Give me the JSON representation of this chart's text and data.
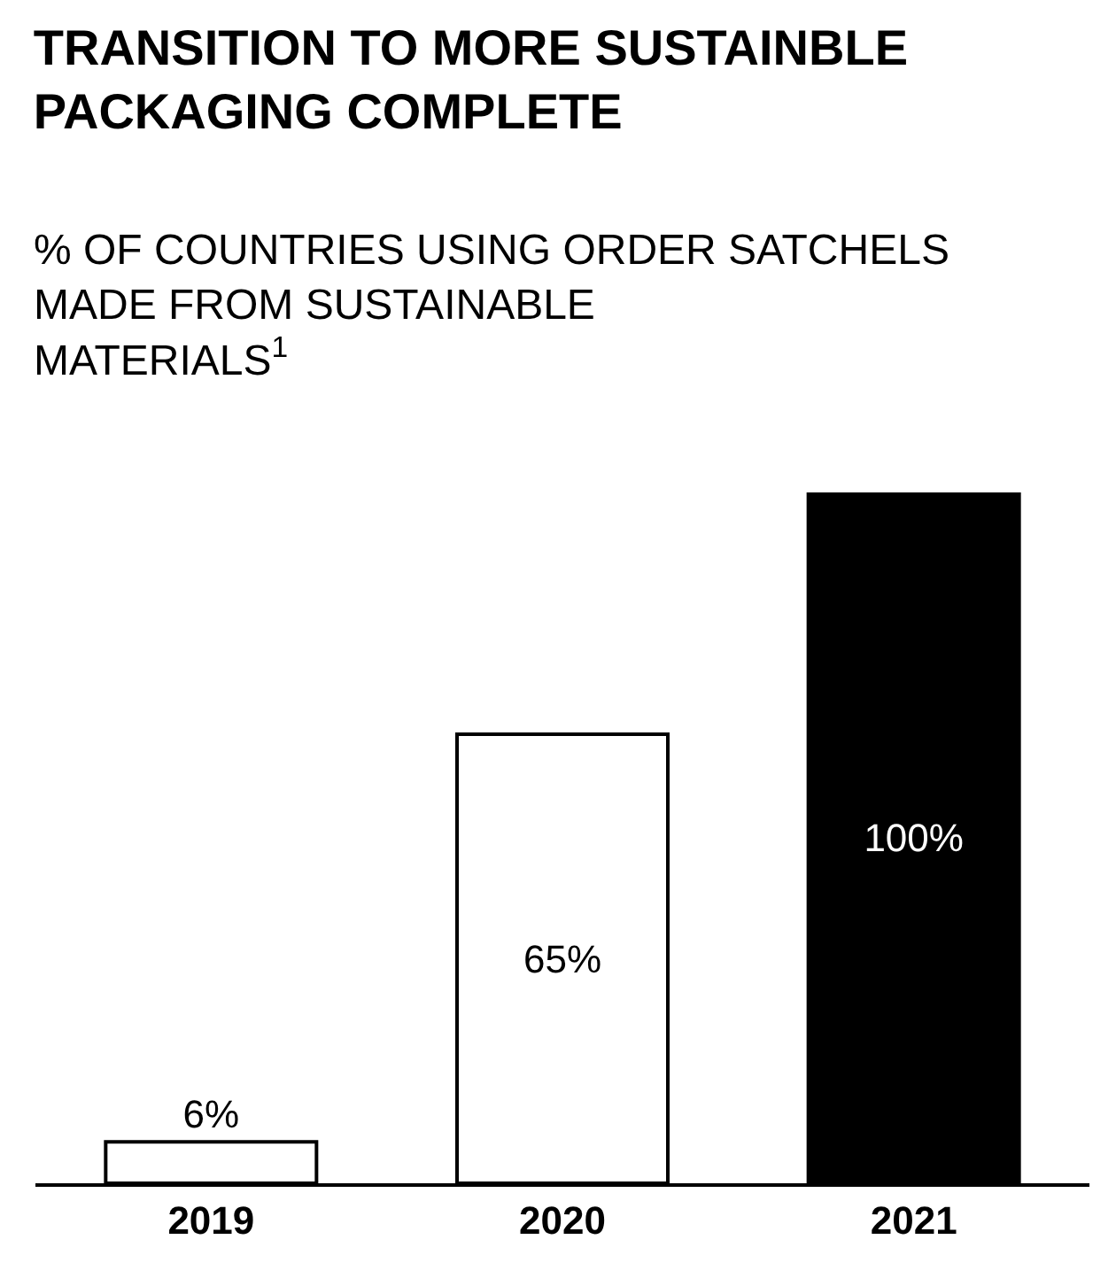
{
  "chart_data": {
    "type": "bar",
    "title": "TRANSITION TO MORE SUSTAINBLE PACKAGING COMPLETE",
    "subtitle": "% OF COUNTRIES USING ORDER SATCHELS MADE FROM SUSTAINABLE MATERIALS$^{1}$",
    "categories": [
      "2019",
      "2020",
      "2021"
    ],
    "values": [
      6,
      65,
      100
    ],
    "colors": [
      "#ffffff",
      "#ffffff",
      "#000000"
    ],
    "value_labels": [
      "6%",
      "65%",
      "100%"
    ],
    "ylim": [
      0,
      100
    ],
    "tick_labels": "x",
    "legend": false
  }
}
